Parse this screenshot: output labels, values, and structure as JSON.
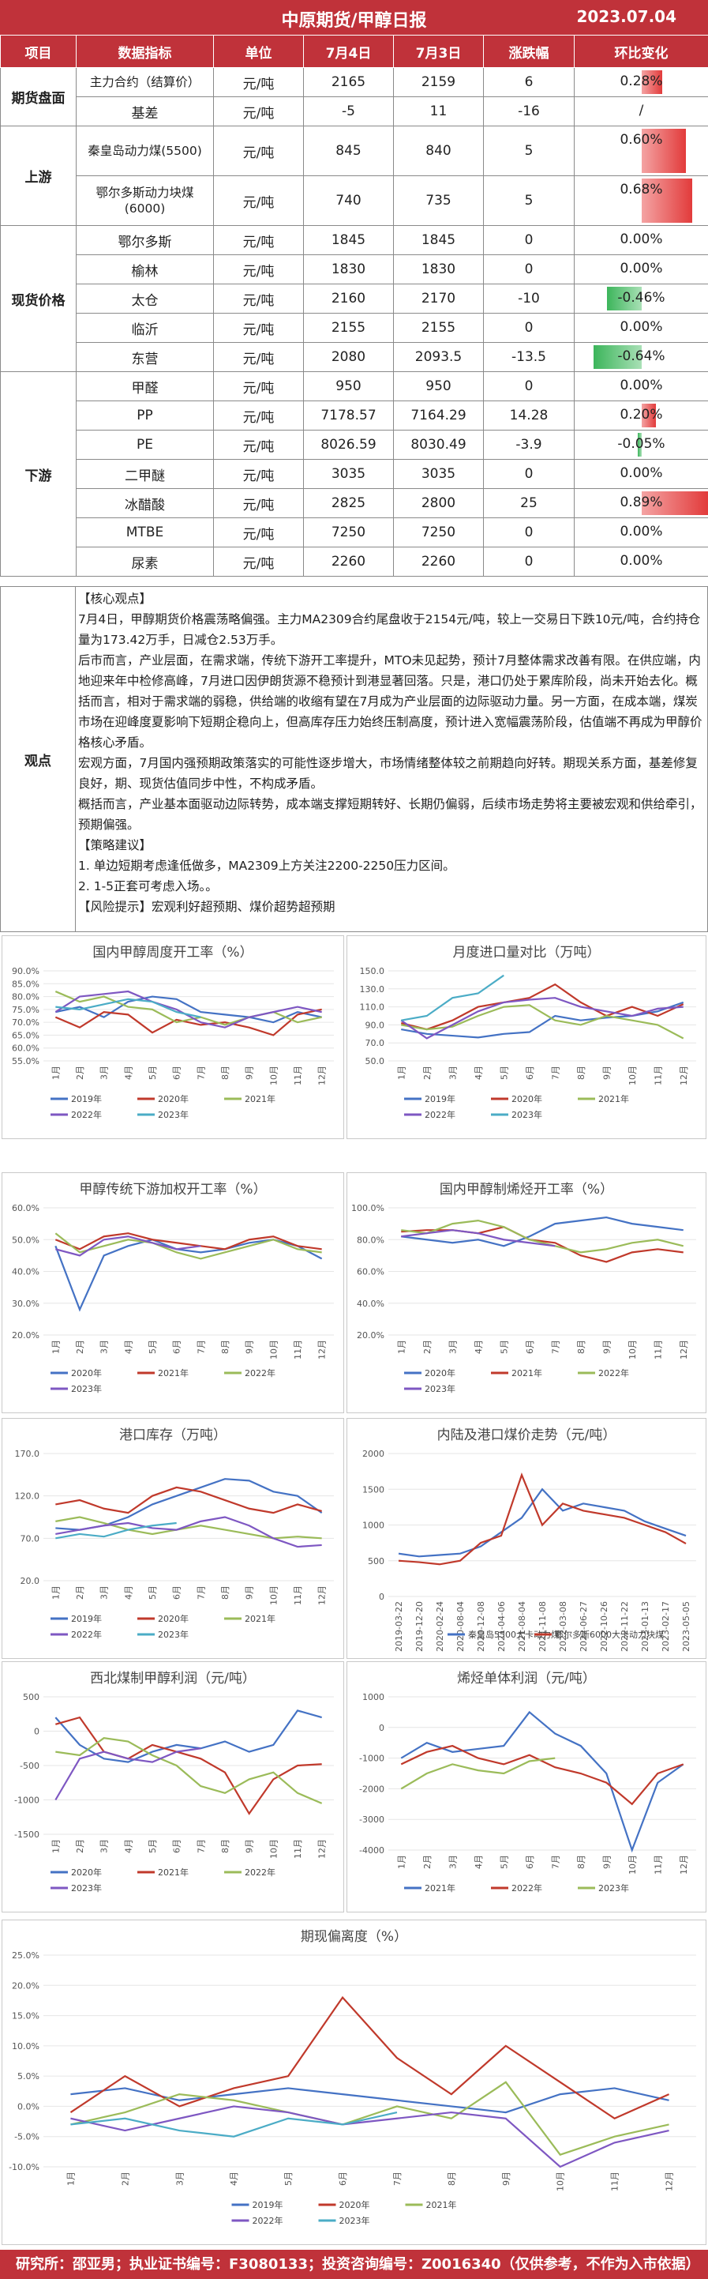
{
  "header": {
    "title": "中原期货/甲醇日报",
    "date": "2023.07.04"
  },
  "table": {
    "columns": [
      "项目",
      "数据指标",
      "单位",
      "7月4日",
      "7月3日",
      "涨跌幅",
      "环比变化"
    ],
    "sections": [
      {
        "name": "期货盘面",
        "rows": [
          {
            "item": "主力合约（结算价）",
            "unit": "元/吨",
            "d1": "2165",
            "d0": "2159",
            "chg": "6",
            "pct": "0.28%",
            "pctv": 0.28
          },
          {
            "item": "基差",
            "unit": "元/吨",
            "d1": "-5",
            "d0": "11",
            "chg": "-16",
            "pct": "/",
            "pctv": 0
          }
        ]
      },
      {
        "name": "上游",
        "rows": [
          {
            "item": "秦皇岛动力煤(5500)",
            "unit": "元/吨",
            "d1": "845",
            "d0": "840",
            "chg": "5",
            "pct": "0.60%",
            "pctv": 0.6
          },
          {
            "item": "鄂尔多斯动力块煤(6000)",
            "unit": "元/吨",
            "d1": "740",
            "d0": "735",
            "chg": "5",
            "pct": "0.68%",
            "pctv": 0.68
          }
        ]
      },
      {
        "name": "现货价格",
        "rows": [
          {
            "item": "鄂尔多斯",
            "unit": "元/吨",
            "d1": "1845",
            "d0": "1845",
            "chg": "0",
            "pct": "0.00%",
            "pctv": 0
          },
          {
            "item": "榆林",
            "unit": "元/吨",
            "d1": "1830",
            "d0": "1830",
            "chg": "0",
            "pct": "0.00%",
            "pctv": 0
          },
          {
            "item": "太仓",
            "unit": "元/吨",
            "d1": "2160",
            "d0": "2170",
            "chg": "-10",
            "pct": "-0.46%",
            "pctv": -0.46
          },
          {
            "item": "临沂",
            "unit": "元/吨",
            "d1": "2155",
            "d0": "2155",
            "chg": "0",
            "pct": "0.00%",
            "pctv": 0
          },
          {
            "item": "东营",
            "unit": "元/吨",
            "d1": "2080",
            "d0": "2093.5",
            "chg": "-13.5",
            "pct": "-0.64%",
            "pctv": -0.64
          }
        ]
      },
      {
        "name": "下游",
        "rows": [
          {
            "item": "甲醛",
            "unit": "元/吨",
            "d1": "950",
            "d0": "950",
            "chg": "0",
            "pct": "0.00%",
            "pctv": 0
          },
          {
            "item": "PP",
            "unit": "元/吨",
            "d1": "7178.57",
            "d0": "7164.29",
            "chg": "14.28",
            "pct": "0.20%",
            "pctv": 0.2
          },
          {
            "item": "PE",
            "unit": "元/吨",
            "d1": "8026.59",
            "d0": "8030.49",
            "chg": "-3.9",
            "pct": "-0.05%",
            "pctv": -0.05
          },
          {
            "item": "二甲醚",
            "unit": "元/吨",
            "d1": "3035",
            "d0": "3035",
            "chg": "0",
            "pct": "0.00%",
            "pctv": 0
          },
          {
            "item": "冰醋酸",
            "unit": "元/吨",
            "d1": "2825",
            "d0": "2800",
            "chg": "25",
            "pct": "0.89%",
            "pctv": 0.89
          },
          {
            "item": "MTBE",
            "unit": "元/吨",
            "d1": "7250",
            "d0": "7250",
            "chg": "0",
            "pct": "0.00%",
            "pctv": 0
          },
          {
            "item": "尿素",
            "unit": "元/吨",
            "d1": "2260",
            "d0": "2260",
            "chg": "0",
            "pct": "0.00%",
            "pctv": 0
          }
        ]
      }
    ]
  },
  "view": {
    "label": "观点",
    "lines": [
      "【核心观点】",
      "7月4日，甲醇期货价格震荡略偏强。主力MA2309合约尾盘收于2154元/吨，较上一交易日下跌10元/吨，合约持仓量为173.42万手，日减仓2.53万手。",
      "后市而言，产业层面，在需求端，传统下游开工率提升，MTO未见起势，预计7月整体需求改善有限。在供应端，内地迎来年中检修高峰，7月进口因伊朗货源不稳预计到港显著回落。只是，港口仍处于累库阶段，尚未开始去化。概括而言，相对于需求端的弱稳，供给端的收缩有望在7月成为产业层面的边际驱动力量。另一方面，在成本端，煤炭市场在迎峰度夏影响下短期企稳向上，但高库存压力始终压制高度，预计进入宽幅震荡阶段，估值端不再成为甲醇价格核心矛盾。",
      "  宏观方面，7月国内强预期政策落实的可能性逐步增大，市场情绪整体较之前期趋向好转。期现关系方面，基差修复良好，期、现货估值同步中性，不构成矛盾。",
      "  概括而言，产业基本面驱动边际转势，成本端支撑短期转好、长期仍偏弱，后续市场走势将主要被宏观和供给牵引，预期偏强。",
      "【策略建议】",
      "1. 单边短期考虑逢低做多，MA2309上方关注2200-2250压力区间。",
      "2. 1-5正套可考虑入场。。",
      "    【风险提示】宏观利好超预期、煤价超势超预期"
    ]
  },
  "months12": [
    "1月",
    "2月",
    "3月",
    "4月",
    "5月",
    "6月",
    "7月",
    "8月",
    "9月",
    "10月",
    "11月",
    "12月"
  ],
  "charts": [
    {
      "id": "c1",
      "title": "国内甲醇周度开工率（%）",
      "type": "line",
      "ylim": [
        55,
        90
      ],
      "yticks": [
        "90.0%",
        "85.0%",
        "80.0%",
        "75.0%",
        "70.0%",
        "65.0%",
        "60.0%",
        "55.0%"
      ],
      "series": [
        {
          "name": "2019年",
          "color": "#4472c4",
          "values": [
            74,
            76,
            72,
            78,
            80,
            79,
            74,
            73,
            72,
            70,
            74,
            72
          ]
        },
        {
          "name": "2020年",
          "color": "#c0392b",
          "values": [
            72,
            68,
            74,
            73,
            66,
            71,
            69,
            70,
            68,
            65,
            73,
            75
          ]
        },
        {
          "name": "2021年",
          "color": "#9bbb59",
          "values": [
            82,
            78,
            80,
            76,
            75,
            70,
            72,
            69,
            72,
            74,
            70,
            72
          ]
        },
        {
          "name": "2022年",
          "color": "#7e57c2",
          "values": [
            74,
            80,
            81,
            82,
            78,
            75,
            70,
            68,
            72,
            74,
            76,
            74
          ]
        },
        {
          "name": "2023年",
          "color": "#4bacc6",
          "values": [
            76,
            75,
            77,
            79,
            78,
            74,
            72
          ]
        }
      ]
    },
    {
      "id": "c2",
      "title": "月度进口量对比（万吨）",
      "type": "line",
      "ylim": [
        50,
        150
      ],
      "yticks": [
        "150.0",
        "130.0",
        "110.0",
        "90.0",
        "70.0",
        "50.0"
      ],
      "series": [
        {
          "name": "2019年",
          "color": "#4472c4",
          "values": [
            85,
            80,
            78,
            76,
            80,
            82,
            100,
            95,
            98,
            100,
            105,
            115
          ]
        },
        {
          "name": "2020年",
          "color": "#c0392b",
          "values": [
            92,
            85,
            95,
            110,
            115,
            120,
            135,
            115,
            100,
            110,
            100,
            113
          ]
        },
        {
          "name": "2021年",
          "color": "#9bbb59",
          "values": [
            90,
            85,
            88,
            100,
            110,
            112,
            95,
            90,
            100,
            95,
            90,
            75
          ]
        },
        {
          "name": "2022年",
          "color": "#7e57c2",
          "values": [
            95,
            75,
            90,
            105,
            115,
            118,
            120,
            110,
            105,
            100,
            108,
            110
          ]
        },
        {
          "name": "2023年",
          "color": "#4bacc6",
          "values": [
            95,
            100,
            120,
            125,
            145
          ]
        }
      ]
    },
    {
      "id": "c3",
      "title": "甲醇传统下游加权开工率（%）",
      "type": "line",
      "ylim": [
        20,
        60
      ],
      "yticks": [
        "60.0%",
        "50.0%",
        "40.0%",
        "30.0%",
        "20.0%"
      ],
      "series": [
        {
          "name": "2020年",
          "color": "#4472c4",
          "values": [
            48,
            28,
            45,
            48,
            50,
            47,
            46,
            47,
            49,
            50,
            48,
            44
          ]
        },
        {
          "name": "2021年",
          "color": "#c0392b",
          "values": [
            50,
            47,
            51,
            52,
            50,
            49,
            48,
            47,
            50,
            51,
            48,
            47
          ]
        },
        {
          "name": "2022年",
          "color": "#9bbb59",
          "values": [
            52,
            46,
            48,
            50,
            49,
            46,
            44,
            46,
            48,
            50,
            47,
            46
          ]
        },
        {
          "name": "2023年",
          "color": "#7e57c2",
          "values": [
            47,
            45,
            50,
            51,
            49,
            47,
            48
          ]
        }
      ]
    },
    {
      "id": "c4",
      "title": "国内甲醇制烯烃开工率（%）",
      "type": "line",
      "ylim": [
        20,
        100
      ],
      "yticks": [
        "100.0%",
        "80.0%",
        "60.0%",
        "40.0%",
        "20.0%"
      ],
      "series": [
        {
          "name": "2020年",
          "color": "#4472c4",
          "values": [
            82,
            80,
            78,
            80,
            76,
            82,
            90,
            92,
            94,
            90,
            88,
            86
          ]
        },
        {
          "name": "2021年",
          "color": "#c0392b",
          "values": [
            85,
            86,
            86,
            84,
            88,
            80,
            78,
            70,
            66,
            72,
            74,
            72
          ]
        },
        {
          "name": "2022年",
          "color": "#9bbb59",
          "values": [
            86,
            84,
            90,
            92,
            88,
            80,
            76,
            72,
            74,
            78,
            80,
            76
          ]
        },
        {
          "name": "2023年",
          "color": "#7e57c2",
          "values": [
            82,
            84,
            86,
            84,
            80,
            78,
            76
          ]
        }
      ]
    },
    {
      "id": "c5",
      "title": "港口库存（万吨）",
      "type": "line",
      "ylim": [
        20,
        170
      ],
      "yticks": [
        "170.0",
        "120.0",
        "70.0",
        "20.0"
      ],
      "series": [
        {
          "name": "2019年",
          "color": "#4472c4",
          "values": [
            82,
            80,
            85,
            95,
            110,
            120,
            130,
            140,
            138,
            125,
            120,
            100
          ]
        },
        {
          "name": "2020年",
          "color": "#c0392b",
          "values": [
            110,
            115,
            105,
            100,
            120,
            130,
            125,
            115,
            105,
            100,
            110,
            102
          ]
        },
        {
          "name": "2021年",
          "color": "#9bbb59",
          "values": [
            90,
            95,
            88,
            80,
            75,
            80,
            85,
            80,
            75,
            70,
            72,
            70
          ]
        },
        {
          "name": "2022年",
          "color": "#7e57c2",
          "values": [
            75,
            80,
            85,
            88,
            82,
            80,
            90,
            95,
            85,
            70,
            60,
            62
          ]
        },
        {
          "name": "2023年",
          "color": "#4bacc6",
          "values": [
            70,
            75,
            72,
            80,
            85,
            88
          ]
        }
      ]
    },
    {
      "id": "c6",
      "title": "内陆及港口煤价走势（元/吨）",
      "type": "line",
      "ylim": [
        0,
        2000
      ],
      "yticks": [
        "2000",
        "1500",
        "1000",
        "500",
        "0"
      ],
      "xcats": [
        "2019-03-22",
        "2019-12-20",
        "2020-02-24",
        "2020-08-04",
        "2020-12-08",
        "2021-04-06",
        "2021-08-04",
        "2021-11-08",
        "2022-03-08",
        "2022-06-27",
        "2022-10-26",
        "2022-11-22",
        "2023-01-13",
        "2023-02-17",
        "2023-05-05"
      ],
      "series": [
        {
          "name": "秦皇岛5500大卡动力煤",
          "color": "#4472c4",
          "values": [
            600,
            560,
            580,
            600,
            700,
            900,
            1100,
            1500,
            1200,
            1300,
            1250,
            1200,
            1050,
            950,
            850
          ]
        },
        {
          "name": "鄂尔多斯6000大卡动力块煤",
          "color": "#c0392b",
          "values": [
            500,
            480,
            450,
            500,
            750,
            850,
            1700,
            1000,
            1300,
            1200,
            1150,
            1100,
            1000,
            900,
            740
          ]
        }
      ]
    },
    {
      "id": "c7",
      "title": "西北煤制甲醇利润（元/吨）",
      "type": "line",
      "ylim": [
        -1500,
        500
      ],
      "yticks": [
        "500",
        "0",
        "-500",
        "-1000",
        "-1500"
      ],
      "series": [
        {
          "name": "2020年",
          "color": "#4472c4",
          "values": [
            200,
            -200,
            -400,
            -450,
            -300,
            -200,
            -250,
            -150,
            -300,
            -200,
            300,
            200
          ]
        },
        {
          "name": "2021年",
          "color": "#c0392b",
          "values": [
            100,
            200,
            -300,
            -400,
            -200,
            -300,
            -400,
            -600,
            -1200,
            -700,
            -500,
            -480
          ]
        },
        {
          "name": "2022年",
          "color": "#9bbb59",
          "values": [
            -300,
            -350,
            -100,
            -150,
            -350,
            -500,
            -800,
            -900,
            -700,
            -600,
            -900,
            -1050
          ]
        },
        {
          "name": "2023年",
          "color": "#7e57c2",
          "values": [
            -1000,
            -400,
            -300,
            -400,
            -450,
            -300,
            -250
          ]
        }
      ]
    },
    {
      "id": "c8",
      "title": "烯烃单体利润（元/吨）",
      "type": "line",
      "ylim": [
        -4000,
        1000
      ],
      "yticks": [
        "1000",
        "0",
        "-1000",
        "-2000",
        "-3000",
        "-4000"
      ],
      "series": [
        {
          "name": "2021年",
          "color": "#4472c4",
          "values": [
            -1000,
            -500,
            -800,
            -700,
            -600,
            500,
            -200,
            -600,
            -1500,
            -4000,
            -1800,
            -1200
          ]
        },
        {
          "name": "2022年",
          "color": "#c0392b",
          "values": [
            -1200,
            -800,
            -600,
            -1000,
            -1200,
            -900,
            -1300,
            -1500,
            -1800,
            -2500,
            -1500,
            -1200
          ]
        },
        {
          "name": "2023年",
          "color": "#9bbb59",
          "values": [
            -2000,
            -1500,
            -1200,
            -1400,
            -1500,
            -1100,
            -1000
          ]
        }
      ]
    },
    {
      "id": "c9",
      "title": "期现偏离度（%）",
      "type": "line",
      "ylim": [
        -10,
        25
      ],
      "yticks": [
        "25.0%",
        "20.0%",
        "15.0%",
        "10.0%",
        "5.0%",
        "0.0%",
        "-5.0%",
        "-10.0%"
      ],
      "series": [
        {
          "name": "2019年",
          "color": "#4472c4",
          "values": [
            2,
            3,
            1,
            2,
            3,
            2,
            1,
            0,
            -1,
            2,
            3,
            1
          ]
        },
        {
          "name": "2020年",
          "color": "#c0392b",
          "values": [
            -1,
            5,
            0,
            3,
            5,
            18,
            8,
            2,
            10,
            4,
            -2,
            2
          ]
        },
        {
          "name": "2021年",
          "color": "#9bbb59",
          "values": [
            -3,
            -1,
            2,
            1,
            -1,
            -3,
            0,
            -2,
            4,
            -8,
            -5,
            -3
          ]
        },
        {
          "name": "2022年",
          "color": "#7e57c2",
          "values": [
            -2,
            -4,
            -2,
            0,
            -1,
            -3,
            -2,
            -1,
            -2,
            -10,
            -6,
            -4
          ]
        },
        {
          "name": "2023年",
          "color": "#4bacc6",
          "values": [
            -3,
            -2,
            -4,
            -5,
            -2,
            -3,
            -1
          ]
        }
      ]
    }
  ],
  "footer": {
    "text": "研究所：邵亚男；执业证书编号：F3080133；投资咨询编号：Z0016340（仅供参考，不作为入市依据）"
  }
}
